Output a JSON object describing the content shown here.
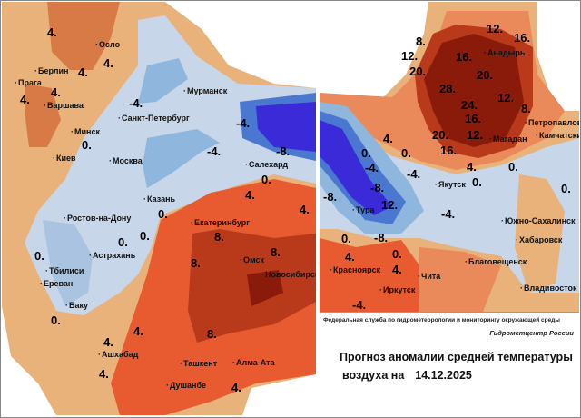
{
  "title": {
    "agency": "Федеральная служба по гидрометеорологии и мониторингу окружающей среды",
    "center": "Гидрометцентр России",
    "line1": "Прогноз аномалии средней температуры",
    "line2": "воздуха на",
    "date": "14.12.2025"
  },
  "colors": {
    "warm_light": "#e8b27a",
    "warm_mid": "#ea8a5a",
    "warm_strong": "#e85a30",
    "warm_deep": "#b83a1a",
    "warm_extreme": "#8a1a0a",
    "cold_light": "#c8d6ea",
    "cold_mid": "#8fb6dc",
    "cold_strong": "#4a78d0",
    "cold_deep": "#3a2ad8"
  },
  "left_map": {
    "cities": [
      "Осло",
      "Берлин",
      "Прага",
      "Варшава",
      "Минск",
      "Киев",
      "Москва",
      "Мурманск",
      "Санкт-Петербург",
      "Салехард",
      "Казань",
      "Ростов-на-Дону",
      "Екатеринбург",
      "Астрахань",
      "Тбилиси",
      "Ереван",
      "Баку",
      "Омск",
      "Новосибирск",
      "Ашхабад",
      "Ташкент",
      "Алма-Ата",
      "Душанбе"
    ],
    "isolines": [
      "4.",
      "4.",
      "4.",
      "4.",
      "4.",
      "0.",
      "-4.",
      "-4.",
      "-4.",
      "-8.",
      "0.",
      "4.",
      "4.",
      "0.",
      "0.",
      "0.",
      "8.",
      "8.",
      "8.",
      "8.",
      "0.",
      "4.",
      "4.",
      "4.",
      "4.",
      "0."
    ]
  },
  "right_map": {
    "cities": [
      "Анадырь",
      "Петропавловск",
      "Камчатский",
      "Магадан",
      "Якутск",
      "Тура",
      "Красноярск",
      "Иркутск",
      "Чита",
      "Благовещенск",
      "Южно-Сахалинск",
      "Хабаровск",
      "Владивосток"
    ],
    "isolines": [
      "12.",
      "8.",
      "16.",
      "12.",
      "16.",
      "20.",
      "20.",
      "28.",
      "24.",
      "12.",
      "16.",
      "12.",
      "20.",
      "16.",
      "8.",
      "4.",
      "0.",
      "0.",
      "0.",
      "-4.",
      "-4.",
      "-4.",
      "4.",
      "0.",
      "-8.",
      "-8.",
      "12.",
      "-8.",
      "0.",
      "0.",
      "4.",
      "4.",
      "-4.",
      "0."
    ]
  }
}
